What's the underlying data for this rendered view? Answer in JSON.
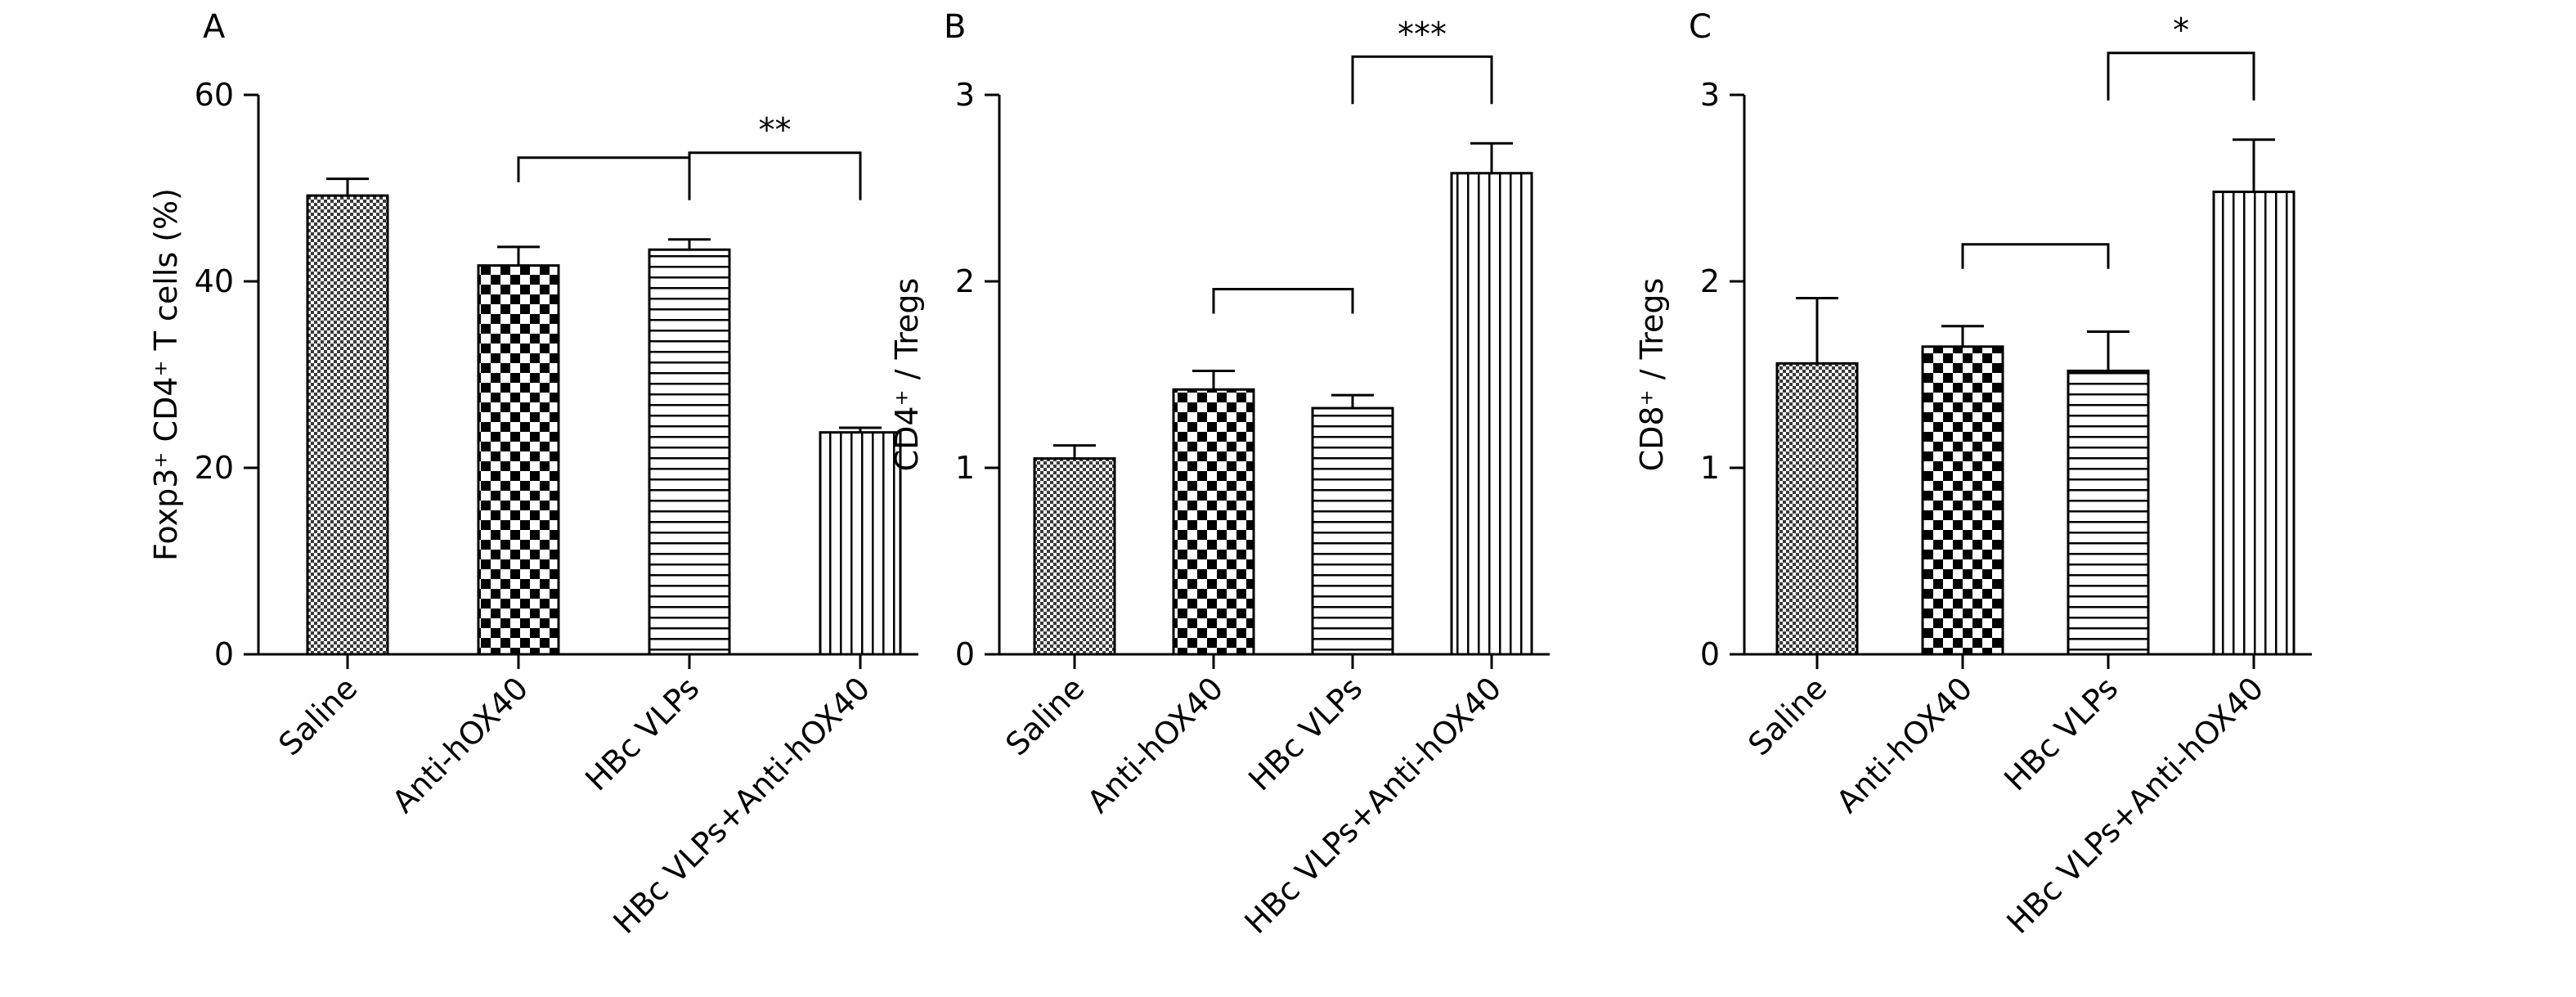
{
  "chart_data": [
    {
      "type": "bar",
      "panel_label": "A",
      "ylabel": "Foxp3⁺ CD4⁺ T cells (%)",
      "categories": [
        "Saline",
        "Anti-hOX40",
        "HBc VLPs",
        "HBc VLPs+Anti-hOX40"
      ],
      "values": [
        49.2,
        41.7,
        43.4,
        23.8
      ],
      "errors": [
        1.8,
        2.0,
        1.1,
        0.5
      ],
      "ylim": [
        0,
        60
      ],
      "yticks": [
        0,
        20,
        40,
        60
      ],
      "significance": [
        {
          "from": 1,
          "to": 2,
          "label": ""
        },
        {
          "from": 2,
          "to": 3,
          "label": "**"
        }
      ]
    },
    {
      "type": "bar",
      "panel_label": "B",
      "ylabel": "CD4⁺ / Tregs",
      "categories": [
        "Saline",
        "Anti-hOX40",
        "HBc VLPs",
        "HBc VLPs+Anti-hOX40"
      ],
      "values": [
        1.05,
        1.42,
        1.32,
        2.58
      ],
      "errors": [
        0.07,
        0.1,
        0.07,
        0.16
      ],
      "ylim": [
        0,
        3
      ],
      "yticks": [
        0,
        1,
        2,
        3
      ],
      "significance": [
        {
          "from": 1,
          "to": 2,
          "label": ""
        },
        {
          "from": 2,
          "to": 3,
          "label": "***"
        }
      ]
    },
    {
      "type": "bar",
      "panel_label": "C",
      "ylabel": "CD8⁺ / Tregs",
      "categories": [
        "Saline",
        "Anti-hOX40",
        "HBc VLPs",
        "HBc VLPs+Anti-hOX40"
      ],
      "values": [
        1.56,
        1.65,
        1.52,
        2.48
      ],
      "errors": [
        0.35,
        0.11,
        0.21,
        0.28
      ],
      "ylim": [
        0,
        3
      ],
      "yticks": [
        0,
        1,
        2,
        3
      ],
      "significance": [
        {
          "from": 1,
          "to": 2,
          "label": ""
        },
        {
          "from": 2,
          "to": 3,
          "label": "*"
        }
      ]
    }
  ]
}
